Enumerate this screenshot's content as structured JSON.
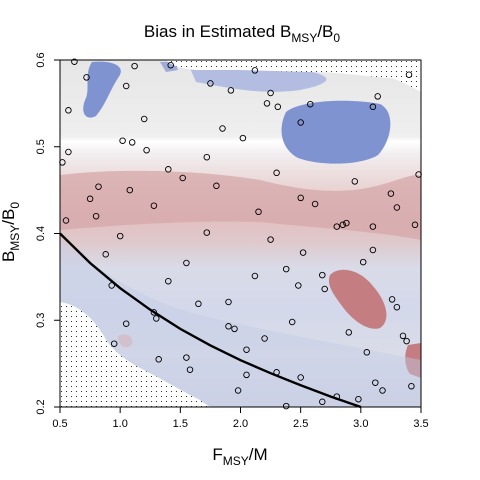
{
  "chart_data": {
    "type": "heatmap",
    "title_main": "Bias in Estimated B",
    "title_sub_msy": "MSY",
    "title_slash": "/B",
    "title_sub_zero": "0",
    "xlabel_main": "F",
    "xlabel_sub": "MSY",
    "xlabel_tail": "/M",
    "ylabel_main": "B",
    "ylabel_sub": "MSY",
    "ylabel_slash": "/B",
    "ylabel_sub_zero": "0",
    "xlim": [
      0.5,
      3.5
    ],
    "ylim": [
      0.2,
      0.6
    ],
    "x_ticks": [
      0.5,
      1.0,
      1.5,
      2.0,
      2.5,
      3.0,
      3.5
    ],
    "x_tick_labels": [
      "0.5",
      "1.0",
      "1.5",
      "2.0",
      "2.5",
      "3.0",
      "3.5"
    ],
    "y_ticks": [
      0.2,
      0.3,
      0.4,
      0.5,
      0.6
    ],
    "y_tick_labels": [
      "0.2",
      "0.3",
      "0.4",
      "0.5",
      "0.6"
    ],
    "color_scale": {
      "positive_bias": "#c47d80",
      "neutral": "#f2f2f2",
      "negative_bias": "#7b8fcf"
    },
    "stippled_infeasible_regions": true,
    "curve": {
      "x": [
        0.5,
        0.75,
        1.0,
        1.25,
        1.5,
        1.75,
        2.0,
        2.25,
        2.5,
        2.75,
        3.0
      ],
      "y": [
        0.4,
        0.366,
        0.337,
        0.312,
        0.29,
        0.271,
        0.254,
        0.239,
        0.225,
        0.212,
        0.2
      ]
    },
    "points": [
      [
        0.62,
        0.598
      ],
      [
        0.72,
        0.58
      ],
      [
        1.05,
        0.57
      ],
      [
        1.12,
        0.593
      ],
      [
        1.42,
        0.594
      ],
      [
        0.57,
        0.542
      ],
      [
        1.2,
        0.532
      ],
      [
        1.75,
        0.573
      ],
      [
        1.92,
        0.565
      ],
      [
        2.12,
        0.588
      ],
      [
        2.22,
        0.55
      ],
      [
        2.25,
        0.562
      ],
      [
        2.31,
        0.546
      ],
      [
        2.58,
        0.549
      ],
      [
        3.1,
        0.546
      ],
      [
        3.14,
        0.558
      ],
      [
        3.4,
        0.583
      ],
      [
        1.02,
        0.507
      ],
      [
        1.1,
        0.505
      ],
      [
        1.22,
        0.496
      ],
      [
        1.85,
        0.521
      ],
      [
        2.02,
        0.51
      ],
      [
        2.5,
        0.528
      ],
      [
        0.52,
        0.482
      ],
      [
        0.57,
        0.494
      ],
      [
        1.72,
        0.488
      ],
      [
        1.52,
        0.464
      ],
      [
        1.4,
        0.474
      ],
      [
        1.8,
        0.455
      ],
      [
        0.82,
        0.454
      ],
      [
        1.08,
        0.45
      ],
      [
        0.75,
        0.44
      ],
      [
        2.3,
        0.47
      ],
      [
        2.95,
        0.46
      ],
      [
        3.3,
        0.43
      ],
      [
        3.25,
        0.446
      ],
      [
        2.15,
        0.425
      ],
      [
        1.28,
        0.432
      ],
      [
        2.5,
        0.441
      ],
      [
        2.62,
        0.434
      ],
      [
        0.55,
        0.415
      ],
      [
        0.8,
        0.42
      ],
      [
        2.8,
        0.408
      ],
      [
        2.85,
        0.41
      ],
      [
        3.1,
        0.408
      ],
      [
        3.48,
        0.468
      ],
      [
        3.45,
        0.41
      ],
      [
        1.0,
        0.397
      ],
      [
        1.72,
        0.401
      ],
      [
        2.25,
        0.393
      ],
      [
        2.88,
        0.412
      ],
      [
        0.88,
        0.376
      ],
      [
        2.52,
        0.378
      ],
      [
        3.1,
        0.381
      ],
      [
        3.02,
        0.367
      ],
      [
        1.55,
        0.366
      ],
      [
        2.68,
        0.352
      ],
      [
        2.12,
        0.351
      ],
      [
        2.38,
        0.359
      ],
      [
        0.93,
        0.34
      ],
      [
        1.4,
        0.345
      ],
      [
        2.48,
        0.34
      ],
      [
        2.7,
        0.336
      ],
      [
        3.26,
        0.324
      ],
      [
        3.3,
        0.315
      ],
      [
        1.65,
        0.319
      ],
      [
        1.9,
        0.321
      ],
      [
        1.28,
        0.309
      ],
      [
        1.3,
        0.302
      ],
      [
        1.05,
        0.296
      ],
      [
        1.9,
        0.293
      ],
      [
        1.95,
        0.29
      ],
      [
        2.43,
        0.298
      ],
      [
        2.9,
        0.286
      ],
      [
        0.95,
        0.273
      ],
      [
        2.2,
        0.279
      ],
      [
        3.35,
        0.282
      ],
      [
        3.38,
        0.276
      ],
      [
        2.05,
        0.266
      ],
      [
        3.05,
        0.263
      ],
      [
        1.32,
        0.255
      ],
      [
        1.55,
        0.257
      ],
      [
        1.58,
        0.243
      ],
      [
        2.3,
        0.24
      ],
      [
        2.05,
        0.237
      ],
      [
        2.5,
        0.234
      ],
      [
        3.12,
        0.228
      ],
      [
        3.42,
        0.224
      ],
      [
        1.98,
        0.219
      ],
      [
        3.18,
        0.219
      ],
      [
        2.8,
        0.212
      ],
      [
        2.98,
        0.209
      ],
      [
        2.68,
        0.206
      ],
      [
        2.38,
        0.201
      ]
    ]
  }
}
